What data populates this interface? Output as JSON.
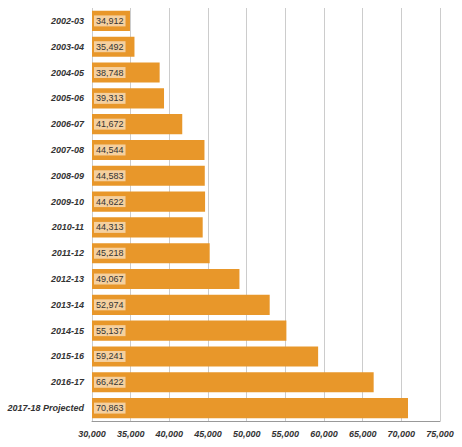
{
  "chart_data": {
    "type": "bar",
    "orientation": "horizontal",
    "categories": [
      "2002-03",
      "2003-04",
      "2004-05",
      "2005-06",
      "2006-07",
      "2007-08",
      "2008-09",
      "2009-10",
      "2010-11",
      "2011-12",
      "2012-13",
      "2013-14",
      "2014-15",
      "2015-16",
      "2016-17",
      "2017-18 Projected"
    ],
    "values": [
      34912,
      35492,
      38748,
      39313,
      41672,
      44544,
      44583,
      44622,
      44313,
      45218,
      49067,
      52974,
      55137,
      59241,
      66422,
      70863
    ],
    "value_labels": [
      "34,912",
      "35,492",
      "38,748",
      "39,313",
      "41,672",
      "44,544",
      "44,583",
      "44,622",
      "44,313",
      "45,218",
      "49,067",
      "52,974",
      "55,137",
      "59,241",
      "66,422",
      "70,863"
    ],
    "data_labels": true,
    "color": "#e8972a",
    "xlim": [
      30000,
      75000
    ],
    "xticks": [
      {
        "value": 30000,
        "label": "30,000"
      },
      {
        "value": 35000,
        "label": "35,000"
      },
      {
        "value": 40000,
        "label": "40,000"
      },
      {
        "value": 45000,
        "label": "45,000"
      },
      {
        "value": 50000,
        "label": "50,000"
      },
      {
        "value": 55000,
        "label": "55,000"
      },
      {
        "value": 60000,
        "label": "60,000"
      },
      {
        "value": 65000,
        "label": "65,000"
      },
      {
        "value": 70000,
        "label": "70,000"
      },
      {
        "value": 75000,
        "label": "75,000"
      }
    ],
    "grid": true
  }
}
